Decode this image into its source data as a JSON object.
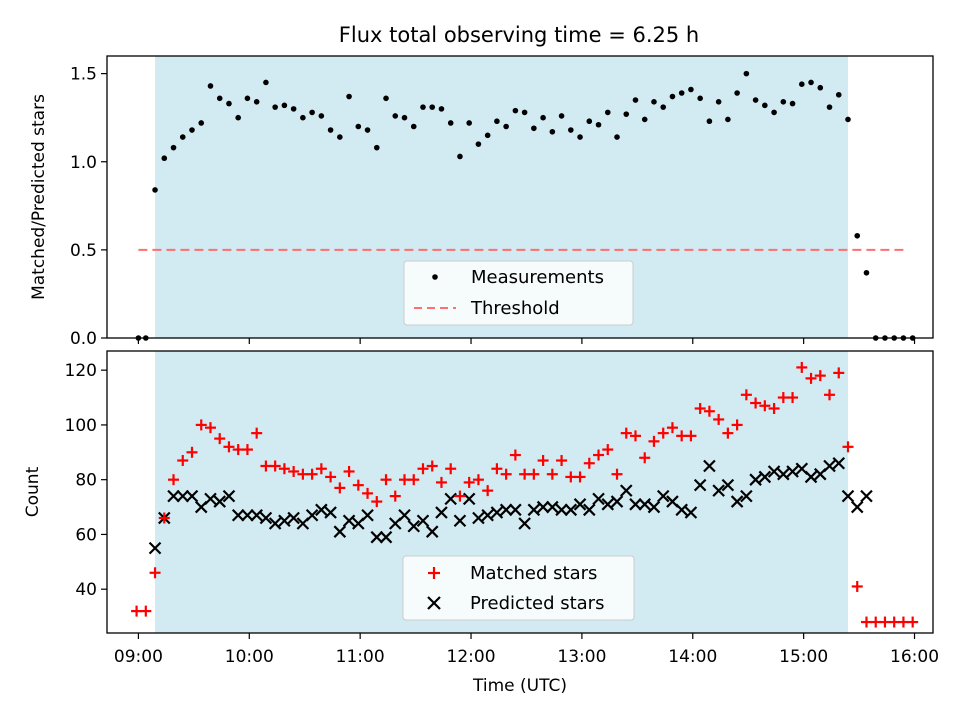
{
  "title": "Flux total observing time = 6.25 h",
  "colors": {
    "observing_window": "#add8e6",
    "measurement": "#000000",
    "threshold": "#ff6f6f",
    "matched": "#ff0000",
    "predicted": "#000000"
  },
  "chart_data": [
    {
      "type": "scatter",
      "name": "ratio",
      "ylabel": "Matched/Predicted stars",
      "ylim": [
        0,
        1.6
      ],
      "yticks": [
        "0.0",
        "0.5",
        "1.0",
        "1.5"
      ],
      "xlim": [
        "08:43",
        "16:10"
      ],
      "observing_window": [
        "09:09",
        "15:24"
      ],
      "threshold": {
        "value": 0.5,
        "x": [
          "09:00",
          "15:55"
        ]
      },
      "legend": {
        "position": "lower center",
        "items": [
          "Measurements",
          "Threshold"
        ]
      },
      "measurements": [
        [
          "09:00",
          0.0
        ],
        [
          "09:04",
          0.0
        ],
        [
          "09:09",
          0.84
        ],
        [
          "09:14",
          1.02
        ],
        [
          "09:19",
          1.08
        ],
        [
          "09:24",
          1.14
        ],
        [
          "09:29",
          1.18
        ],
        [
          "09:34",
          1.22
        ],
        [
          "09:39",
          1.43
        ],
        [
          "09:44",
          1.36
        ],
        [
          "09:49",
          1.33
        ],
        [
          "09:54",
          1.25
        ],
        [
          "09:59",
          1.36
        ],
        [
          "10:04",
          1.34
        ],
        [
          "10:09",
          1.45
        ],
        [
          "10:14",
          1.31
        ],
        [
          "10:19",
          1.32
        ],
        [
          "10:24",
          1.3
        ],
        [
          "10:29",
          1.25
        ],
        [
          "10:34",
          1.28
        ],
        [
          "10:39",
          1.26
        ],
        [
          "10:44",
          1.18
        ],
        [
          "10:49",
          1.14
        ],
        [
          "10:54",
          1.37
        ],
        [
          "10:59",
          1.2
        ],
        [
          "11:04",
          1.18
        ],
        [
          "11:09",
          1.08
        ],
        [
          "11:14",
          1.36
        ],
        [
          "11:19",
          1.26
        ],
        [
          "11:24",
          1.25
        ],
        [
          "11:29",
          1.2
        ],
        [
          "11:34",
          1.31
        ],
        [
          "11:39",
          1.31
        ],
        [
          "11:44",
          1.3
        ],
        [
          "11:49",
          1.22
        ],
        [
          "11:54",
          1.03
        ],
        [
          "11:59",
          1.22
        ],
        [
          "12:04",
          1.1
        ],
        [
          "12:09",
          1.15
        ],
        [
          "12:14",
          1.23
        ],
        [
          "12:19",
          1.2
        ],
        [
          "12:24",
          1.29
        ],
        [
          "12:29",
          1.28
        ],
        [
          "12:34",
          1.19
        ],
        [
          "12:39",
          1.25
        ],
        [
          "12:44",
          1.17
        ],
        [
          "12:49",
          1.26
        ],
        [
          "12:54",
          1.18
        ],
        [
          "12:59",
          1.14
        ],
        [
          "13:04",
          1.23
        ],
        [
          "13:09",
          1.21
        ],
        [
          "13:14",
          1.28
        ],
        [
          "13:19",
          1.14
        ],
        [
          "13:24",
          1.27
        ],
        [
          "13:29",
          1.35
        ],
        [
          "13:34",
          1.24
        ],
        [
          "13:39",
          1.34
        ],
        [
          "13:44",
          1.31
        ],
        [
          "13:49",
          1.37
        ],
        [
          "13:54",
          1.39
        ],
        [
          "13:59",
          1.41
        ],
        [
          "14:04",
          1.36
        ],
        [
          "14:09",
          1.23
        ],
        [
          "14:14",
          1.34
        ],
        [
          "14:19",
          1.24
        ],
        [
          "14:24",
          1.39
        ],
        [
          "14:29",
          1.5
        ],
        [
          "14:34",
          1.35
        ],
        [
          "14:39",
          1.32
        ],
        [
          "14:44",
          1.28
        ],
        [
          "14:49",
          1.34
        ],
        [
          "14:54",
          1.33
        ],
        [
          "14:59",
          1.44
        ],
        [
          "15:04",
          1.45
        ],
        [
          "15:09",
          1.42
        ],
        [
          "15:14",
          1.31
        ],
        [
          "15:19",
          1.38
        ],
        [
          "15:24",
          1.24
        ],
        [
          "15:29",
          0.58
        ],
        [
          "15:34",
          0.37
        ],
        [
          "15:39",
          0.0
        ],
        [
          "15:44",
          0.0
        ],
        [
          "15:49",
          0.0
        ],
        [
          "15:54",
          0.0
        ],
        [
          "15:59",
          0.0
        ]
      ]
    },
    {
      "type": "scatter",
      "name": "counts",
      "ylabel": "Count",
      "xlabel": "Time (UTC)",
      "ylim": [
        24,
        127
      ],
      "yticks": [
        "40",
        "60",
        "80",
        "100",
        "120"
      ],
      "xlim": [
        "08:43",
        "16:10"
      ],
      "xticks": [
        "09:00",
        "10:00",
        "11:00",
        "12:00",
        "13:00",
        "14:00",
        "15:00",
        "16:00"
      ],
      "observing_window": [
        "09:09",
        "15:24"
      ],
      "legend": {
        "position": "lower center",
        "items": [
          "Matched stars",
          "Predicted stars"
        ]
      },
      "series": [
        {
          "name": "Matched stars",
          "marker": "+",
          "points": [
            [
              "08:59",
              32
            ],
            [
              "09:04",
              32
            ],
            [
              "09:09",
              46
            ],
            [
              "09:14",
              66
            ],
            [
              "09:19",
              80
            ],
            [
              "09:24",
              87
            ],
            [
              "09:29",
              90
            ],
            [
              "09:34",
              100
            ],
            [
              "09:39",
              99
            ],
            [
              "09:44",
              95
            ],
            [
              "09:49",
              92
            ],
            [
              "09:54",
              91
            ],
            [
              "09:59",
              91
            ],
            [
              "10:04",
              97
            ],
            [
              "10:09",
              85
            ],
            [
              "10:14",
              85
            ],
            [
              "10:19",
              84
            ],
            [
              "10:24",
              83
            ],
            [
              "10:29",
              82
            ],
            [
              "10:34",
              82
            ],
            [
              "10:39",
              84
            ],
            [
              "10:44",
              81
            ],
            [
              "10:49",
              77
            ],
            [
              "10:54",
              83
            ],
            [
              "10:59",
              78
            ],
            [
              "11:04",
              75
            ],
            [
              "11:09",
              72
            ],
            [
              "11:14",
              80
            ],
            [
              "11:19",
              74
            ],
            [
              "11:24",
              80
            ],
            [
              "11:29",
              80
            ],
            [
              "11:34",
              84
            ],
            [
              "11:39",
              85
            ],
            [
              "11:44",
              79
            ],
            [
              "11:49",
              84
            ],
            [
              "11:54",
              74
            ],
            [
              "11:59",
              79
            ],
            [
              "12:04",
              80
            ],
            [
              "12:09",
              76
            ],
            [
              "12:14",
              84
            ],
            [
              "12:19",
              82
            ],
            [
              "12:24",
              89
            ],
            [
              "12:29",
              82
            ],
            [
              "12:34",
              82
            ],
            [
              "12:39",
              87
            ],
            [
              "12:44",
              82
            ],
            [
              "12:49",
              87
            ],
            [
              "12:54",
              81
            ],
            [
              "12:59",
              81
            ],
            [
              "13:04",
              86
            ],
            [
              "13:09",
              89
            ],
            [
              "13:14",
              91
            ],
            [
              "13:19",
              82
            ],
            [
              "13:24",
              97
            ],
            [
              "13:29",
              96
            ],
            [
              "13:34",
              88
            ],
            [
              "13:39",
              94
            ],
            [
              "13:44",
              97
            ],
            [
              "13:49",
              99
            ],
            [
              "13:54",
              96
            ],
            [
              "13:59",
              96
            ],
            [
              "14:04",
              106
            ],
            [
              "14:09",
              105
            ],
            [
              "14:14",
              102
            ],
            [
              "14:19",
              97
            ],
            [
              "14:24",
              100
            ],
            [
              "14:29",
              111
            ],
            [
              "14:34",
              108
            ],
            [
              "14:39",
              107
            ],
            [
              "14:44",
              106
            ],
            [
              "14:49",
              110
            ],
            [
              "14:54",
              110
            ],
            [
              "14:59",
              121
            ],
            [
              "15:04",
              117
            ],
            [
              "15:09",
              118
            ],
            [
              "15:14",
              111
            ],
            [
              "15:19",
              119
            ],
            [
              "15:24",
              92
            ],
            [
              "15:29",
              41
            ],
            [
              "15:34",
              28
            ],
            [
              "15:39",
              28
            ],
            [
              "15:44",
              28
            ],
            [
              "15:49",
              28
            ],
            [
              "15:54",
              28
            ],
            [
              "15:59",
              28
            ]
          ]
        },
        {
          "name": "Predicted stars",
          "marker": "x",
          "points": [
            [
              "09:09",
              55
            ],
            [
              "09:14",
              66
            ],
            [
              "09:19",
              74
            ],
            [
              "09:24",
              74
            ],
            [
              "09:29",
              74
            ],
            [
              "09:34",
              70
            ],
            [
              "09:39",
              73
            ],
            [
              "09:44",
              72
            ],
            [
              "09:49",
              74
            ],
            [
              "09:54",
              67
            ],
            [
              "09:59",
              67
            ],
            [
              "10:04",
              67
            ],
            [
              "10:09",
              66
            ],
            [
              "10:14",
              64
            ],
            [
              "10:19",
              65
            ],
            [
              "10:24",
              66
            ],
            [
              "10:29",
              64
            ],
            [
              "10:34",
              67
            ],
            [
              "10:39",
              69
            ],
            [
              "10:44",
              68
            ],
            [
              "10:49",
              61
            ],
            [
              "10:54",
              65
            ],
            [
              "10:59",
              64
            ],
            [
              "11:04",
              67
            ],
            [
              "11:09",
              59
            ],
            [
              "11:14",
              59
            ],
            [
              "11:19",
              64
            ],
            [
              "11:24",
              67
            ],
            [
              "11:29",
              63
            ],
            [
              "11:34",
              65
            ],
            [
              "11:39",
              61
            ],
            [
              "11:44",
              68
            ],
            [
              "11:49",
              73
            ],
            [
              "11:54",
              65
            ],
            [
              "11:59",
              73
            ],
            [
              "12:04",
              66
            ],
            [
              "12:09",
              67
            ],
            [
              "12:14",
              68
            ],
            [
              "12:19",
              69
            ],
            [
              "12:24",
              69
            ],
            [
              "12:29",
              64
            ],
            [
              "12:34",
              69
            ],
            [
              "12:39",
              70
            ],
            [
              "12:44",
              70
            ],
            [
              "12:49",
              69
            ],
            [
              "12:54",
              69
            ],
            [
              "12:59",
              71
            ],
            [
              "13:04",
              69
            ],
            [
              "13:09",
              73
            ],
            [
              "13:14",
              71
            ],
            [
              "13:19",
              72
            ],
            [
              "13:24",
              76
            ],
            [
              "13:29",
              71
            ],
            [
              "13:34",
              71
            ],
            [
              "13:39",
              70
            ],
            [
              "13:44",
              74
            ],
            [
              "13:49",
              72
            ],
            [
              "13:54",
              69
            ],
            [
              "13:59",
              68
            ],
            [
              "14:04",
              78
            ],
            [
              "14:09",
              85
            ],
            [
              "14:14",
              76
            ],
            [
              "14:19",
              78
            ],
            [
              "14:24",
              72
            ],
            [
              "14:29",
              74
            ],
            [
              "14:34",
              80
            ],
            [
              "14:39",
              81
            ],
            [
              "14:44",
              83
            ],
            [
              "14:49",
              82
            ],
            [
              "14:54",
              83
            ],
            [
              "14:59",
              84
            ],
            [
              "15:04",
              81
            ],
            [
              "15:09",
              82
            ],
            [
              "15:14",
              85
            ],
            [
              "15:19",
              86
            ],
            [
              "15:24",
              74
            ],
            [
              "15:29",
              70
            ],
            [
              "15:34",
              74
            ]
          ]
        }
      ]
    }
  ]
}
